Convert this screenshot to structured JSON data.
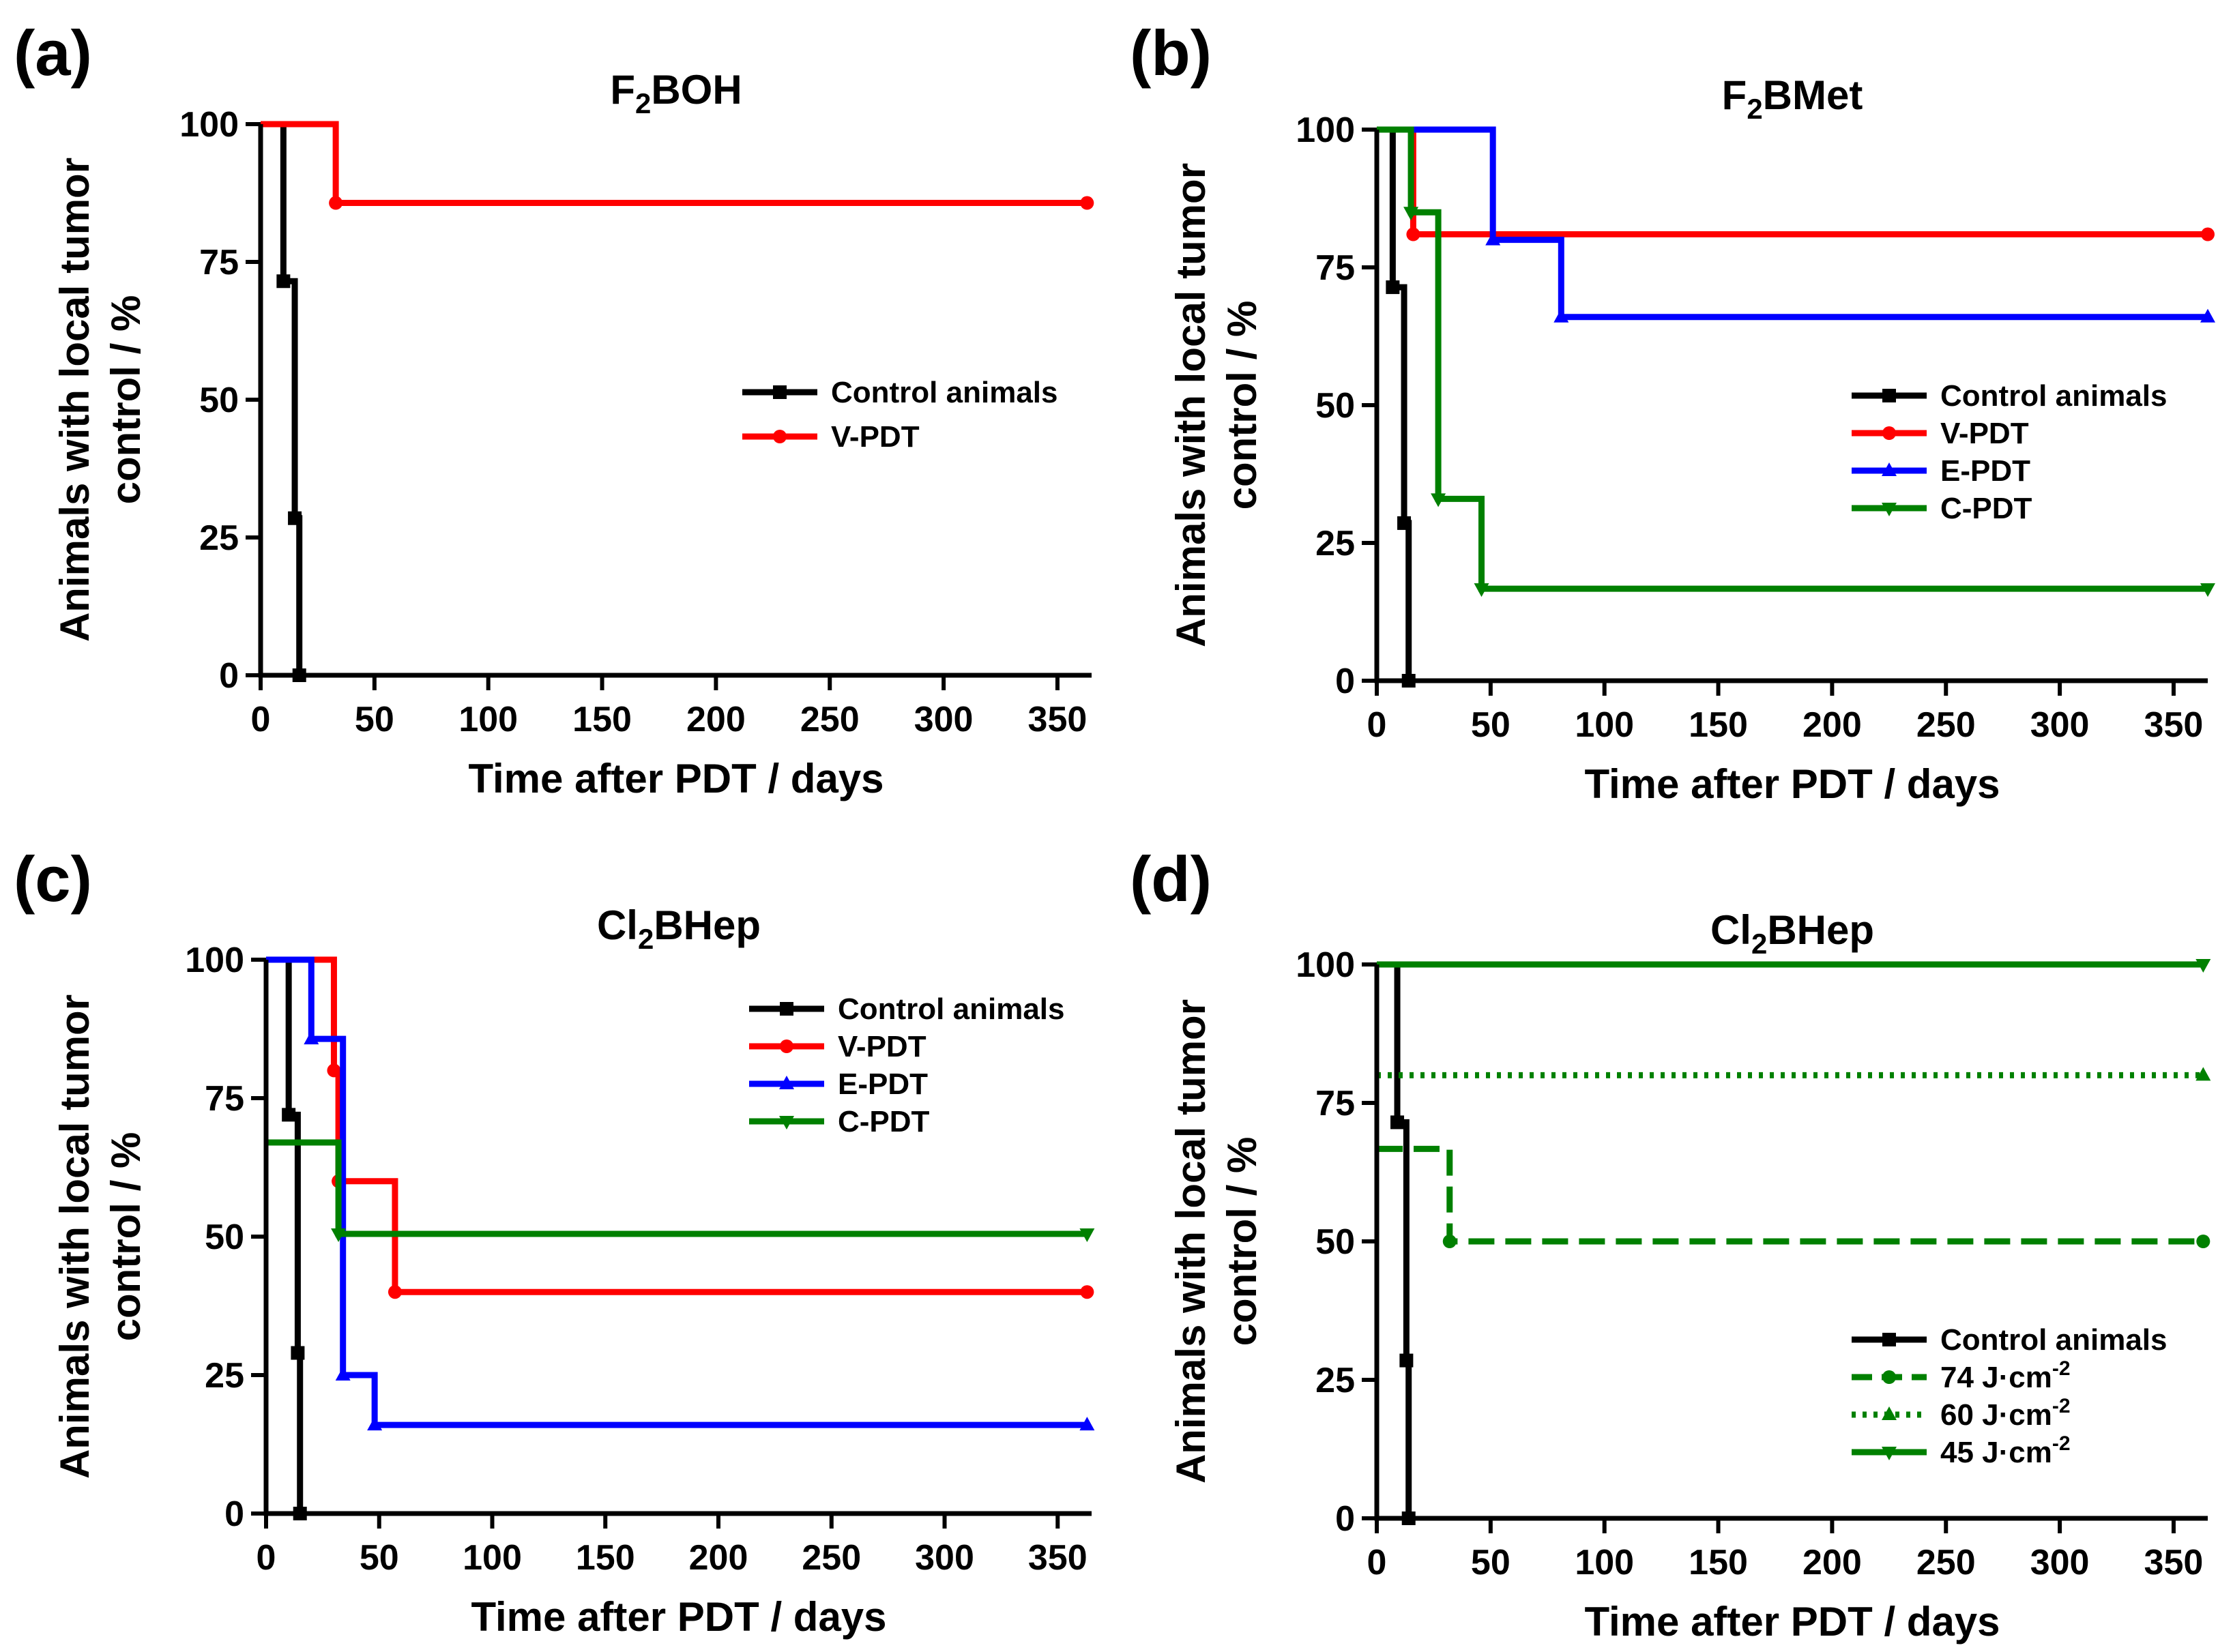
{
  "figure": {
    "panels": [
      {
        "panel_label": "(a)",
        "title_main": "F",
        "title_sub": "2",
        "title_rest": "BOH",
        "xlabel": "Time after PDT / days",
        "ylabel_line1": "Animals with local tumor",
        "ylabel_line2": "control / %",
        "legend_position": "center-right"
      },
      {
        "panel_label": "(b)",
        "title_main": "F",
        "title_sub": "2",
        "title_rest": "BMet",
        "xlabel": "Time after PDT / days",
        "ylabel_line1": "Animals with local tumor",
        "ylabel_line2": "control / %",
        "legend_position": "center-right"
      },
      {
        "panel_label": "(c)",
        "title_main": "Cl",
        "title_sub": "2",
        "title_rest": "BHep",
        "xlabel": "Time after PDT / days",
        "ylabel_line1": "Animals with local tumor",
        "ylabel_line2": "control / %",
        "legend_position": "top-right"
      },
      {
        "panel_label": "(d)",
        "title_main": "Cl",
        "title_sub": "2",
        "title_rest": "BHep",
        "xlabel": "Time after PDT / days",
        "ylabel_line1": "Animals with local tumor",
        "ylabel_line2": "control / %",
        "legend_position": "bottom-right"
      }
    ]
  },
  "chart_data": [
    {
      "type": "line",
      "step": true,
      "title": "F2BOH",
      "xlabel": "Time after PDT / days",
      "ylabel": "Animals with local tumor control / %",
      "xlim": [
        0,
        365
      ],
      "ylim": [
        0,
        100
      ],
      "xticks": [
        0,
        50,
        100,
        150,
        200,
        250,
        300,
        350
      ],
      "yticks": [
        0,
        25,
        50,
        75,
        100
      ],
      "grid": false,
      "legend": "center-right",
      "series": [
        {
          "name": "Control animals",
          "color": "#000000",
          "marker": "square",
          "dash": "solid",
          "x": [
            0,
            10,
            15,
            17
          ],
          "y": [
            100,
            71.5,
            28.5,
            0
          ]
        },
        {
          "name": "V-PDT",
          "color": "#ff0000",
          "marker": "circle",
          "dash": "solid",
          "x": [
            0,
            33,
            363
          ],
          "y": [
            100,
            85.7,
            85.7
          ]
        }
      ]
    },
    {
      "type": "line",
      "step": true,
      "title": "F2BMet",
      "xlabel": "Time after PDT / days",
      "ylabel": "Animals with local tumor control / %",
      "xlim": [
        0,
        365
      ],
      "ylim": [
        0,
        100
      ],
      "xticks": [
        0,
        50,
        100,
        150,
        200,
        250,
        300,
        350
      ],
      "yticks": [
        0,
        25,
        50,
        75,
        100
      ],
      "grid": false,
      "legend": "center-right",
      "series": [
        {
          "name": "Control animals",
          "color": "#000000",
          "marker": "square",
          "dash": "solid",
          "x": [
            0,
            7,
            12,
            14
          ],
          "y": [
            100,
            71.4,
            28.6,
            0
          ]
        },
        {
          "name": "V-PDT",
          "color": "#ff0000",
          "marker": "circle",
          "dash": "solid",
          "x": [
            0,
            16,
            365
          ],
          "y": [
            100,
            81,
            81
          ]
        },
        {
          "name": "E-PDT",
          "color": "#0000ff",
          "marker": "triangle-up",
          "dash": "solid",
          "x": [
            0,
            51,
            81,
            365
          ],
          "y": [
            100,
            80,
            66,
            66
          ]
        },
        {
          "name": "C-PDT",
          "color": "#008000",
          "marker": "triangle-down",
          "dash": "solid",
          "x": [
            0,
            15,
            27,
            46,
            365
          ],
          "y": [
            100,
            85,
            33,
            16.7,
            16.7
          ]
        }
      ]
    },
    {
      "type": "line",
      "step": true,
      "title": "Cl2BHep",
      "xlabel": "Time after PDT / days",
      "ylabel": "Animals with local tumor control / %",
      "xlim": [
        0,
        365
      ],
      "ylim": [
        0,
        100
      ],
      "xticks": [
        0,
        50,
        100,
        150,
        200,
        250,
        300,
        350
      ],
      "yticks": [
        0,
        25,
        50,
        75,
        100
      ],
      "grid": false,
      "legend": "top-right",
      "series": [
        {
          "name": "Control animals",
          "color": "#000000",
          "marker": "square",
          "dash": "solid",
          "x": [
            0,
            10,
            14,
            15
          ],
          "y": [
            100,
            72,
            29,
            0
          ]
        },
        {
          "name": "V-PDT",
          "color": "#ff0000",
          "marker": "circle",
          "dash": "solid",
          "x": [
            0,
            30,
            32,
            57,
            363
          ],
          "y": [
            100,
            80,
            60,
            40,
            40
          ]
        },
        {
          "name": "E-PDT",
          "color": "#0000ff",
          "marker": "triangle-up",
          "dash": "solid",
          "x": [
            0,
            20,
            34,
            48,
            363
          ],
          "y": [
            100,
            85.7,
            25,
            16,
            16
          ]
        },
        {
          "name": "C-PDT",
          "color": "#008000",
          "marker": "triangle-down",
          "dash": "solid",
          "x": [
            0,
            32,
            363
          ],
          "y": [
            67,
            50.5,
            50.5
          ]
        }
      ]
    },
    {
      "type": "line",
      "step": true,
      "title": "Cl2BHep",
      "xlabel": "Time after PDT / days",
      "ylabel": "Animals with local tumor control / %",
      "xlim": [
        0,
        365
      ],
      "ylim": [
        0,
        100
      ],
      "xticks": [
        0,
        50,
        100,
        150,
        200,
        250,
        300,
        350
      ],
      "yticks": [
        0,
        25,
        50,
        75,
        100
      ],
      "grid": false,
      "legend": "bottom-right",
      "series": [
        {
          "name": "Control animals",
          "color": "#000000",
          "marker": "square",
          "dash": "solid",
          "x": [
            0,
            9,
            13,
            14
          ],
          "y": [
            100,
            71.5,
            28.5,
            0
          ]
        },
        {
          "name": "74 J·cm",
          "name_sup": "-2",
          "color": "#008000",
          "marker": "circle",
          "dash": "dashed",
          "x": [
            0,
            32,
            363
          ],
          "y": [
            66.7,
            50,
            50
          ]
        },
        {
          "name": "60 J·cm",
          "name_sup": "-2",
          "color": "#008000",
          "marker": "triangle-up",
          "dash": "dotted",
          "x": [
            0,
            363
          ],
          "y": [
            80,
            80
          ]
        },
        {
          "name": "45 J·cm",
          "name_sup": "-2",
          "color": "#008000",
          "marker": "triangle-down",
          "dash": "solid",
          "x": [
            0,
            363
          ],
          "y": [
            100,
            100
          ]
        }
      ]
    }
  ]
}
